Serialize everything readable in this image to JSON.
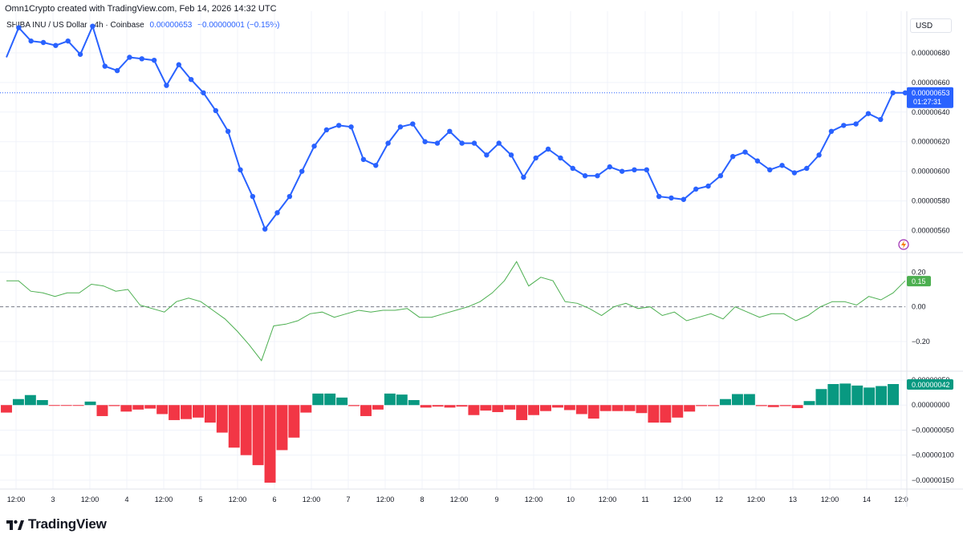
{
  "header": {
    "caption": "Omn1Crypto created with TradingView.com, Feb 14, 2026 14:32 UTC",
    "symbol": "SHIBA INU / US Dollar · 4h · Coinbase",
    "last_value": "0.00000653",
    "change": "−0.00000001 (−0.15%)",
    "currency": "USD"
  },
  "colors": {
    "price_line": "#2962ff",
    "oscillator_line": "#4caf50",
    "hist_positive": "#089981",
    "hist_negative": "#f23645",
    "grid": "#f0f3fa",
    "price_label_bg": "#2962ff",
    "osc_label_bg": "#4caf50",
    "hist_label_bg": "#089981"
  },
  "footer": {
    "logo_text": "TradingView",
    "logo_icon": "tradingview-logo-icon"
  },
  "chart_data": [
    {
      "type": "line",
      "title": "SHIBA INU / US Dollar · 4h · Coinbase",
      "ylim": [
        5.5e-06,
        7e-06
      ],
      "y_ticks": [
        "0.00000680",
        "0.00000660",
        "0.00000640",
        "0.00000620",
        "0.00000600",
        "0.00000580",
        "0.00000560"
      ],
      "x_ticks": [
        "12:00",
        "3",
        "12:00",
        "4",
        "12:00",
        "5",
        "12:00",
        "6",
        "12:00",
        "7",
        "12:00",
        "8",
        "12:00",
        "9",
        "12:00",
        "10",
        "12:00",
        "11",
        "12:00",
        "12",
        "12:00",
        "13",
        "12:00",
        "14",
        "12:0"
      ],
      "last_price_label": "0.00000653",
      "countdown": "01:27:31",
      "values": [
        6.77e-06,
        6.97e-06,
        6.88e-06,
        6.87e-06,
        6.85e-06,
        6.88e-06,
        6.79e-06,
        6.98e-06,
        6.71e-06,
        6.68e-06,
        6.77e-06,
        6.76e-06,
        6.75e-06,
        6.58e-06,
        6.72e-06,
        6.62e-06,
        6.53e-06,
        6.41e-06,
        6.27e-06,
        6.01e-06,
        5.83e-06,
        5.61e-06,
        5.72e-06,
        5.83e-06,
        6e-06,
        6.17e-06,
        6.28e-06,
        6.31e-06,
        6.3e-06,
        6.08e-06,
        6.04e-06,
        6.19e-06,
        6.3e-06,
        6.32e-06,
        6.2e-06,
        6.19e-06,
        6.27e-06,
        6.19e-06,
        6.19e-06,
        6.11e-06,
        6.19e-06,
        6.11e-06,
        5.96e-06,
        6.09e-06,
        6.15e-06,
        6.09e-06,
        6.02e-06,
        5.97e-06,
        5.97e-06,
        6.03e-06,
        6e-06,
        6.01e-06,
        6.01e-06,
        5.83e-06,
        5.82e-06,
        5.81e-06,
        5.88e-06,
        5.9e-06,
        5.97e-06,
        6.1e-06,
        6.13e-06,
        6.07e-06,
        6.01e-06,
        6.04e-06,
        5.99e-06,
        6.02e-06,
        6.11e-06,
        6.27e-06,
        6.31e-06,
        6.32e-06,
        6.39e-06,
        6.35e-06,
        6.53e-06,
        6.53e-06
      ]
    },
    {
      "type": "line",
      "title": "",
      "ylim": [
        -0.32,
        0.28
      ],
      "y_ticks": [
        "0.20",
        "0.00",
        "−0.20"
      ],
      "last_value_label": "0.15",
      "values": [
        0.15,
        0.15,
        0.09,
        0.08,
        0.06,
        0.08,
        0.08,
        0.13,
        0.12,
        0.09,
        0.1,
        0.01,
        -0.01,
        -0.03,
        0.03,
        0.05,
        0.03,
        -0.02,
        -0.07,
        -0.14,
        -0.22,
        -0.31,
        -0.11,
        -0.1,
        -0.08,
        -0.04,
        -0.03,
        -0.06,
        -0.04,
        -0.02,
        -0.03,
        -0.02,
        -0.02,
        -0.01,
        -0.06,
        -0.06,
        -0.04,
        -0.02,
        0.0,
        0.03,
        0.08,
        0.15,
        0.26,
        0.12,
        0.17,
        0.15,
        0.03,
        0.02,
        -0.01,
        -0.05,
        0.0,
        0.02,
        -0.01,
        0.0,
        -0.05,
        -0.03,
        -0.08,
        -0.06,
        -0.04,
        -0.07,
        0.0,
        -0.03,
        -0.06,
        -0.04,
        -0.04,
        -0.08,
        -0.05,
        0.0,
        0.03,
        0.03,
        0.01,
        0.06,
        0.04,
        0.08,
        0.15
      ]
    },
    {
      "type": "bar",
      "title": "",
      "ylim": [
        -1.55e-06,
        5e-07
      ],
      "y_ticks": [
        "0.00000050",
        "0.00000000",
        "−0.00000050",
        "−0.00000100",
        "−0.00000150"
      ],
      "last_value_label": "0.00000042",
      "values": [
        -1.5e-07,
        1.2e-07,
        2e-07,
        1e-07,
        -1e-08,
        -1e-08,
        -1e-08,
        7e-08,
        -2.2e-07,
        -2e-08,
        -1.3e-07,
        -9e-08,
        -7e-08,
        -1.8e-07,
        -3e-07,
        -2.8e-07,
        -2.5e-07,
        -3.5e-07,
        -5.5e-07,
        -8.5e-07,
        -1e-06,
        -1.2e-06,
        -1.55e-06,
        -9e-07,
        -6.5e-07,
        -1.5e-07,
        2.3e-07,
        2.3e-07,
        1.5e-07,
        -2e-08,
        -2.2e-07,
        -9e-08,
        2.3e-07,
        2.1e-07,
        1e-07,
        -5e-08,
        -3e-08,
        -5e-08,
        -3e-08,
        -2e-07,
        -1.1e-07,
        -1.4e-07,
        -9e-08,
        -3e-07,
        -2e-07,
        -1.2e-07,
        -5e-08,
        -1e-07,
        -1.8e-07,
        -2.7e-07,
        -1.2e-07,
        -1.2e-07,
        -1.2e-07,
        -1.6e-07,
        -3.5e-07,
        -3.5e-07,
        -2.5e-07,
        -1.3e-07,
        -2e-08,
        -2e-08,
        1.2e-07,
        2.2e-07,
        2.2e-07,
        -2e-08,
        -4e-08,
        -2e-08,
        -6e-08,
        8e-08,
        3.2e-07,
        4.2e-07,
        4.3e-07,
        3.9e-07,
        3.5e-07,
        3.8e-07,
        4.2e-07
      ]
    }
  ]
}
